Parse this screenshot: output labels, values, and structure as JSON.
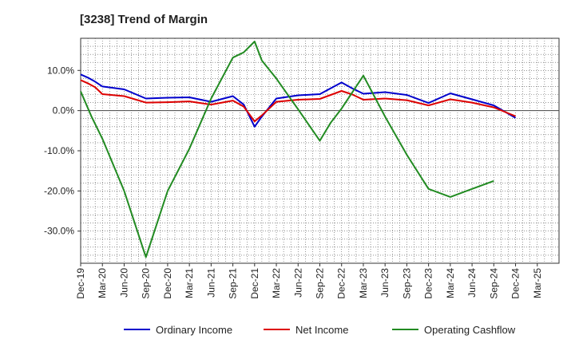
{
  "chart_data": {
    "type": "line",
    "title": "[3238]  Trend of Margin",
    "xlabel": "",
    "ylabel": "",
    "x": [
      "Dec-19",
      "Mar-20",
      "Jun-20",
      "Sep-20",
      "Dec-20",
      "Mar-21",
      "Jun-21",
      "Sep-21",
      "Dec-21",
      "Mar-22",
      "Jun-22",
      "Sep-22",
      "Dec-22",
      "Mar-23",
      "Jun-23",
      "Sep-23",
      "Dec-23",
      "Mar-24",
      "Jun-24",
      "Sep-24",
      "Dec-24",
      "Mar-25"
    ],
    "ylim": [
      -38,
      18
    ],
    "yticks": [
      10,
      0,
      -10,
      -20,
      -30
    ],
    "ytick_labels": [
      "10.0%",
      "0.0%",
      "-10.0%",
      "-20.0%",
      "-30.0%"
    ],
    "grid": true,
    "legend_position": "bottom",
    "series": [
      {
        "name": "Ordinary Income",
        "color": "#0000cc",
        "points": [
          [
            0,
            9.0
          ],
          [
            0.33,
            8.2
          ],
          [
            0.67,
            7.2
          ],
          [
            1,
            6.0
          ],
          [
            2,
            5.3
          ],
          [
            3,
            3.0
          ],
          [
            4,
            3.2
          ],
          [
            5,
            3.3
          ],
          [
            6,
            2.2
          ],
          [
            7,
            3.6
          ],
          [
            7.5,
            1.5
          ],
          [
            8,
            -4.0
          ],
          [
            8.33,
            -1.5
          ],
          [
            9,
            3.0
          ],
          [
            10,
            3.8
          ],
          [
            11,
            4.1
          ],
          [
            12,
            7.0
          ],
          [
            12.5,
            5.5
          ],
          [
            13,
            4.2
          ],
          [
            14,
            4.6
          ],
          [
            15,
            3.9
          ],
          [
            16,
            1.9
          ],
          [
            17,
            4.3
          ],
          [
            18,
            2.8
          ],
          [
            19,
            1.3
          ],
          [
            20,
            -1.8
          ]
        ]
      },
      {
        "name": "Net Income",
        "color": "#dd0000",
        "points": [
          [
            0,
            7.6
          ],
          [
            0.33,
            6.8
          ],
          [
            0.67,
            5.8
          ],
          [
            1,
            4.1
          ],
          [
            2,
            3.6
          ],
          [
            3,
            2.0
          ],
          [
            4,
            2.1
          ],
          [
            5,
            2.3
          ],
          [
            6,
            1.5
          ],
          [
            7,
            2.5
          ],
          [
            7.5,
            1.0
          ],
          [
            8,
            -2.7
          ],
          [
            8.33,
            -1.2
          ],
          [
            9,
            2.2
          ],
          [
            10,
            2.7
          ],
          [
            11,
            2.9
          ],
          [
            12,
            4.9
          ],
          [
            12.5,
            4.0
          ],
          [
            13,
            2.7
          ],
          [
            14,
            3.0
          ],
          [
            15,
            2.6
          ],
          [
            16,
            1.3
          ],
          [
            17,
            2.8
          ],
          [
            18,
            2.0
          ],
          [
            19,
            0.8
          ],
          [
            20,
            -1.4
          ]
        ]
      },
      {
        "name": "Operating Cashflow",
        "color": "#228b22",
        "points": [
          [
            0,
            4.8
          ],
          [
            0.5,
            -1.5
          ],
          [
            1,
            -7.0
          ],
          [
            2,
            -20.0
          ],
          [
            3,
            -36.5
          ],
          [
            4,
            -20.0
          ],
          [
            5,
            -9.5
          ],
          [
            6,
            3.0
          ],
          [
            7,
            13.2
          ],
          [
            7.5,
            14.5
          ],
          [
            8,
            17.2
          ],
          [
            8.33,
            12.5
          ],
          [
            9,
            8.0
          ],
          [
            10,
            0.3
          ],
          [
            11,
            -7.5
          ],
          [
            11.5,
            -3.0
          ],
          [
            12,
            0.5
          ],
          [
            13,
            8.7
          ],
          [
            14,
            -1.5
          ],
          [
            15,
            -11.0
          ],
          [
            16,
            -19.5
          ],
          [
            17,
            -21.5
          ],
          [
            18,
            -19.5
          ],
          [
            19,
            -17.5
          ]
        ]
      }
    ]
  }
}
